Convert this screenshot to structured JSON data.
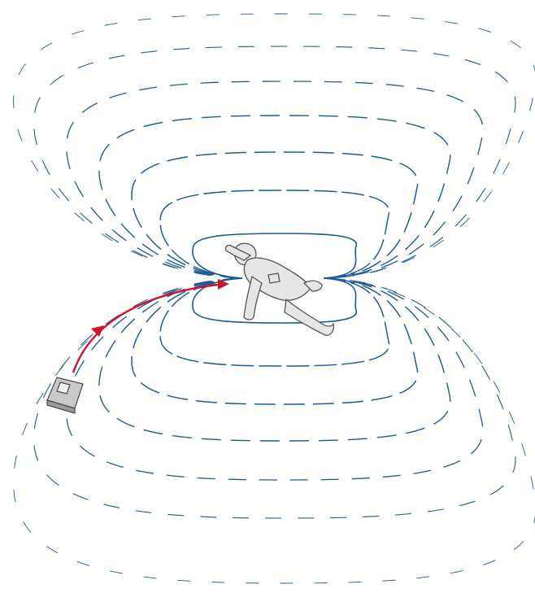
{
  "colors": {
    "field_lines": "#1e5a96",
    "signal_arrow": "#d0142c",
    "figure_fill": "#e6e6e6",
    "figure_outline": "#555555",
    "device_fill": "#c9c9c9",
    "device_outline": "#4a4a4a",
    "background": "#ffffff"
  },
  "icons": {
    "device": "handheld-transceiver-icon",
    "person": "buried-person-icon",
    "signal": "curved-arrow-icon"
  }
}
